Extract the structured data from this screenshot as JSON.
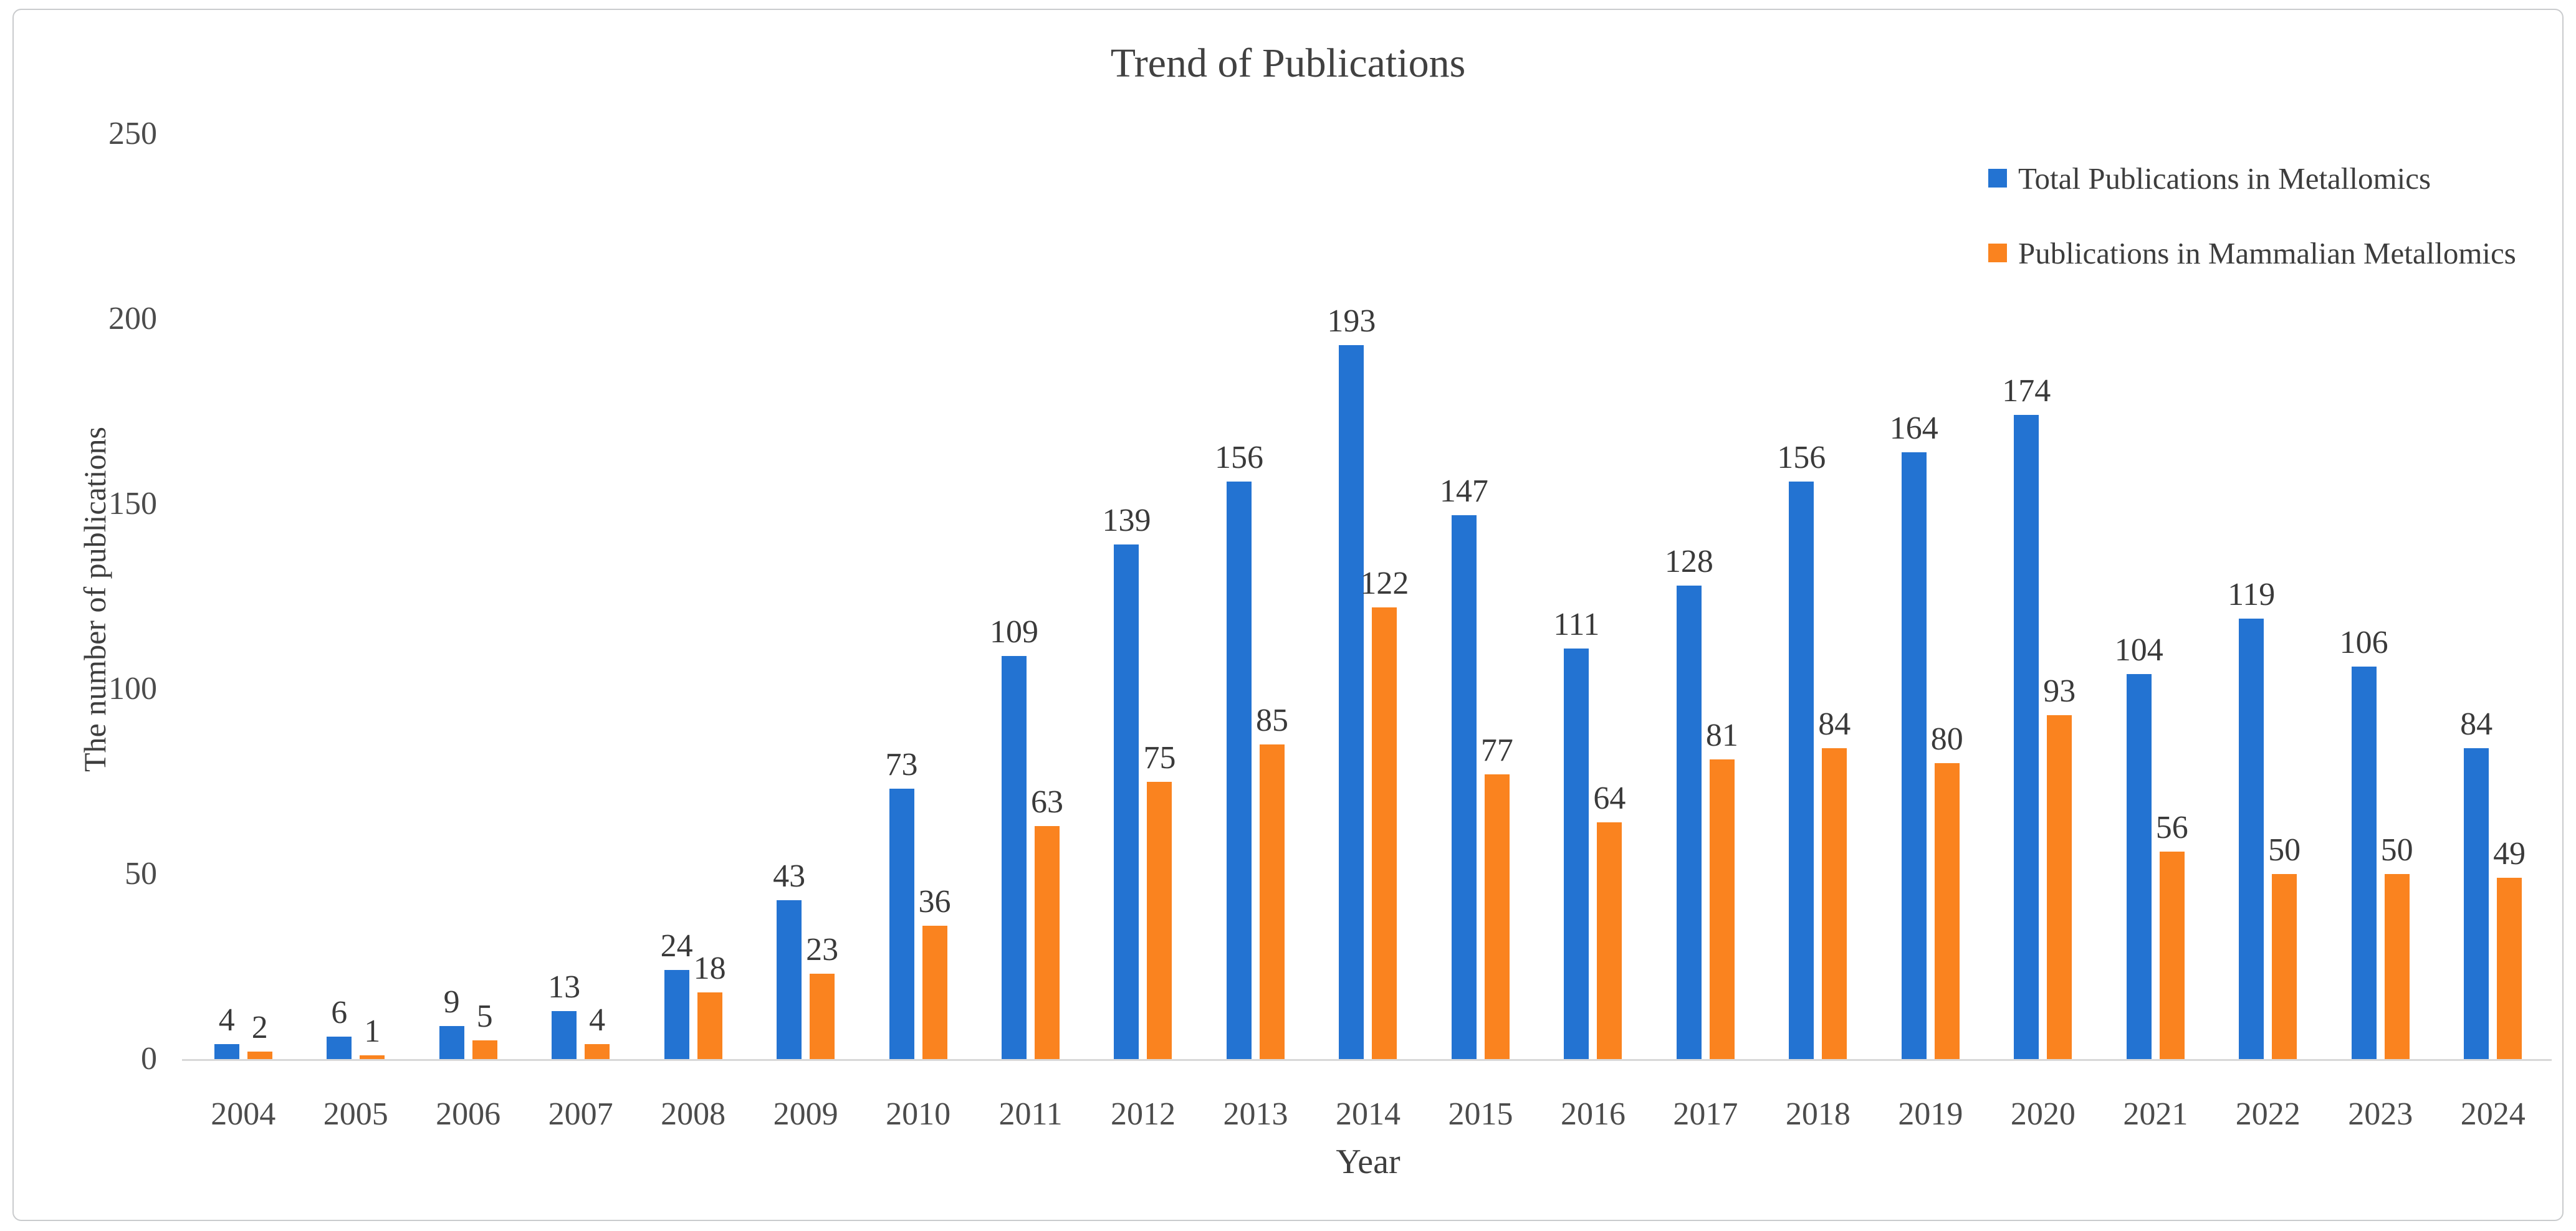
{
  "chart_data": {
    "type": "bar",
    "title": "Trend of Publications",
    "xlabel": "Year",
    "ylabel": "The number of publications",
    "ylim": [
      0,
      250
    ],
    "yticks": [
      0,
      50,
      100,
      150,
      200,
      250
    ],
    "grid": false,
    "legend_position": "top-right",
    "categories": [
      "2004",
      "2005",
      "2006",
      "2007",
      "2008",
      "2009",
      "2010",
      "2011",
      "2012",
      "2013",
      "2014",
      "2015",
      "2016",
      "2017",
      "2018",
      "2019",
      "2020",
      "2021",
      "2022",
      "2023",
      "2024"
    ],
    "series": [
      {
        "name": "Total Publications in Metallomics",
        "color": "#2373d2",
        "values": [
          4,
          6,
          9,
          13,
          24,
          43,
          73,
          109,
          139,
          156,
          193,
          147,
          111,
          128,
          156,
          164,
          174,
          104,
          119,
          106,
          84
        ]
      },
      {
        "name": "Publications in Mammalian Metallomics",
        "color": "#fa831f",
        "values": [
          2,
          1,
          5,
          4,
          18,
          23,
          36,
          63,
          75,
          85,
          122,
          77,
          64,
          81,
          84,
          80,
          93,
          56,
          50,
          50,
          49
        ]
      }
    ]
  }
}
